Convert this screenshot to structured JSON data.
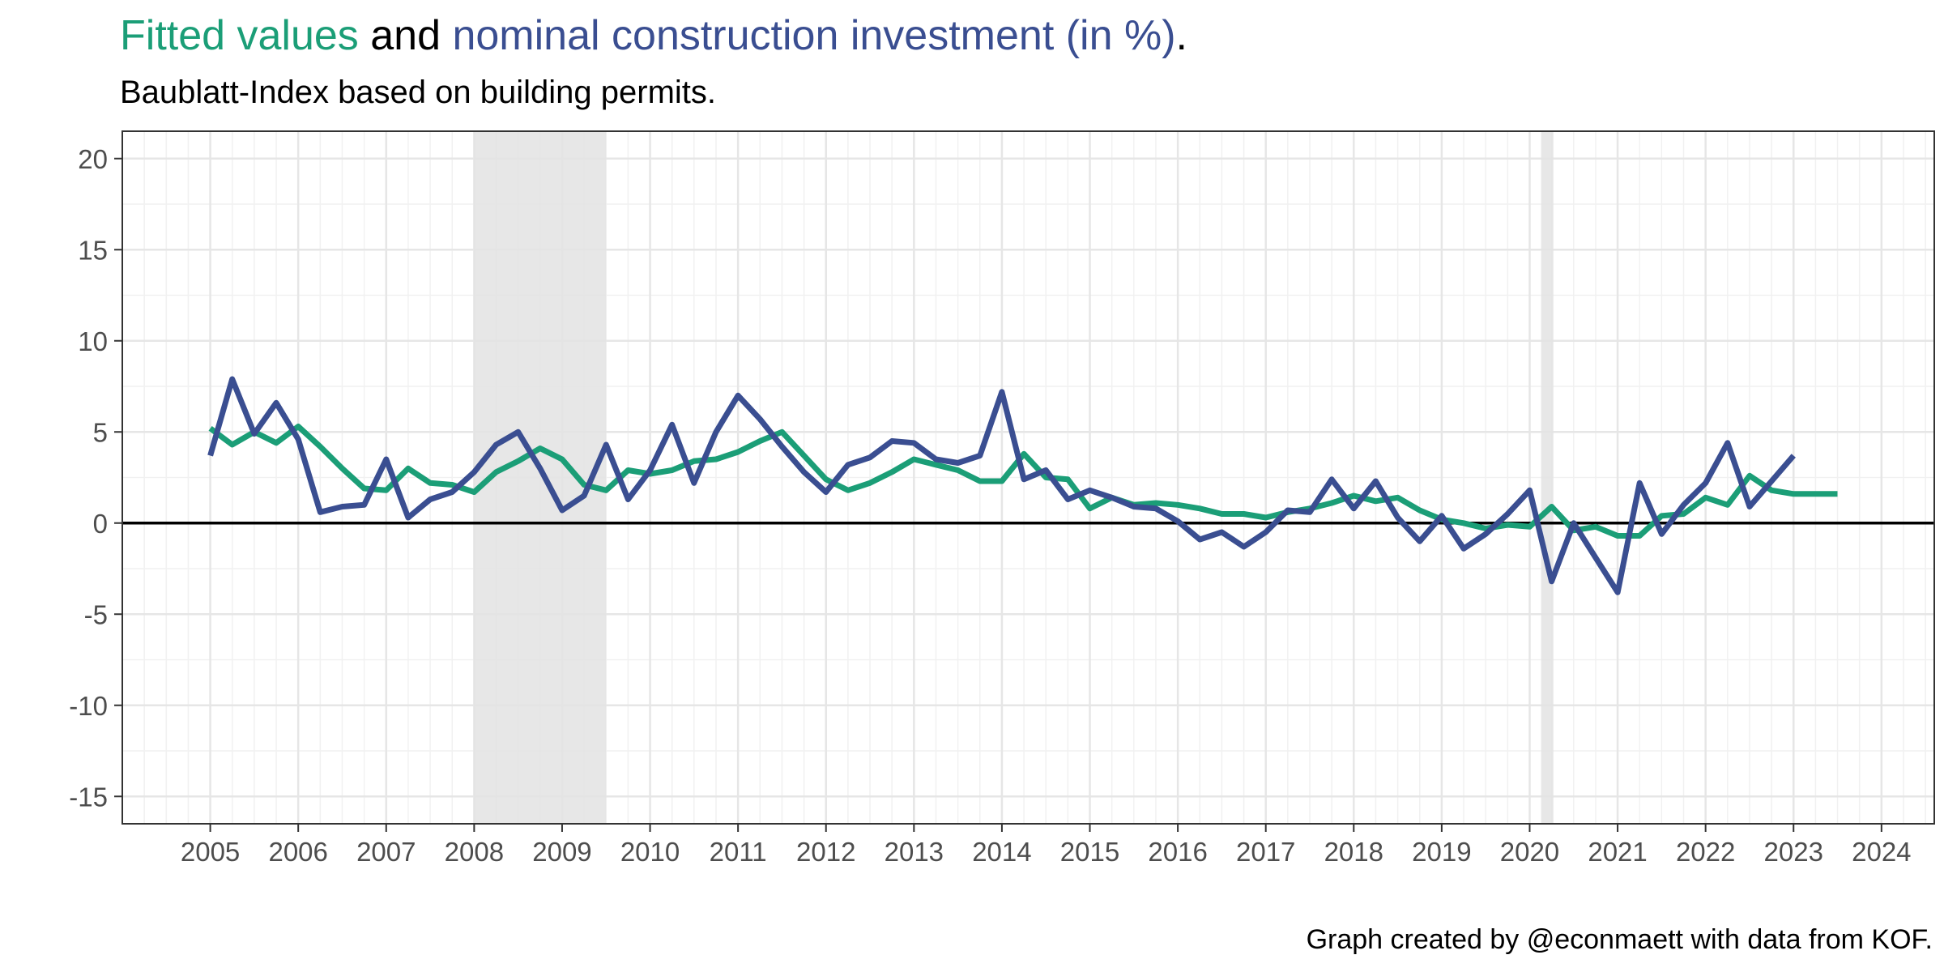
{
  "title": {
    "part1": "Fitted values",
    "part2": " and ",
    "part3": "nominal construction investment (in %)",
    "part4": "."
  },
  "subtitle": "Baublatt-Index based on building permits.",
  "caption": "Graph created by @econmaett with data from KOF.",
  "colors": {
    "fitted": "#1b9e77",
    "actual": "#3a4e91",
    "recession_shade": "#e3e3e3",
    "grid_major": "#e6e6e6",
    "grid_minor": "#f1f1f1",
    "zero_line": "#000000",
    "text": "#4d4d4d"
  },
  "chart_data": {
    "type": "line",
    "title": "Fitted values and nominal construction investment (in %).",
    "subtitle": "Baublatt-Index based on building permits.",
    "xlabel": "",
    "ylabel": "",
    "xlim": [
      2004.0,
      2024.6
    ],
    "ylim": [
      -16.5,
      21.5
    ],
    "x_ticks": [
      2005,
      2006,
      2007,
      2008,
      2009,
      2010,
      2011,
      2012,
      2013,
      2014,
      2015,
      2016,
      2017,
      2018,
      2019,
      2020,
      2021,
      2022,
      2023,
      2024
    ],
    "y_ticks": [
      -15,
      -10,
      -5,
      0,
      5,
      10,
      15,
      20
    ],
    "y_tick_labels": [
      "-15",
      "-10",
      "-5",
      "0",
      "5",
      "10",
      "15",
      "20"
    ],
    "grid": true,
    "horizontal_reference_line": 0,
    "shaded_periods": [
      {
        "start": 2008.0,
        "end": 2009.5
      },
      {
        "start": 2020.13,
        "end": 2020.27
      }
    ],
    "series": [
      {
        "id": "fitted",
        "name": "Fitted values",
        "color": "#1b9e77",
        "x": [
          2005.0,
          2005.25,
          2005.5,
          2005.75,
          2006.0,
          2006.25,
          2006.5,
          2006.75,
          2007.0,
          2007.25,
          2007.5,
          2007.75,
          2008.0,
          2008.25,
          2008.5,
          2008.75,
          2009.0,
          2009.25,
          2009.5,
          2009.75,
          2010.0,
          2010.25,
          2010.5,
          2010.75,
          2011.0,
          2011.25,
          2011.5,
          2011.75,
          2012.0,
          2012.25,
          2012.5,
          2012.75,
          2013.0,
          2013.25,
          2013.5,
          2013.75,
          2014.0,
          2014.25,
          2014.5,
          2014.75,
          2015.0,
          2015.25,
          2015.5,
          2015.75,
          2016.0,
          2016.25,
          2016.5,
          2016.75,
          2017.0,
          2017.25,
          2017.5,
          2017.75,
          2018.0,
          2018.25,
          2018.5,
          2018.75,
          2019.0,
          2019.25,
          2019.5,
          2019.75,
          2020.0,
          2020.25,
          2020.5,
          2020.75,
          2021.0,
          2021.25,
          2021.5,
          2021.75,
          2022.0,
          2022.25,
          2022.5,
          2022.75,
          2023.0,
          2023.25,
          2023.5
        ],
        "y": [
          5.2,
          4.3,
          5.0,
          4.4,
          5.3,
          4.2,
          3.0,
          1.9,
          1.8,
          3.0,
          2.2,
          2.1,
          1.7,
          2.8,
          3.4,
          4.1,
          3.5,
          2.1,
          1.8,
          2.9,
          2.7,
          2.9,
          3.4,
          3.5,
          3.9,
          4.5,
          5.0,
          3.7,
          2.4,
          1.8,
          2.2,
          2.8,
          3.5,
          3.2,
          2.9,
          2.3,
          2.3,
          3.8,
          2.5,
          2.4,
          0.8,
          1.4,
          1.0,
          1.1,
          1.0,
          0.8,
          0.5,
          0.5,
          0.3,
          0.6,
          0.8,
          1.1,
          1.5,
          1.2,
          1.4,
          0.7,
          0.2,
          0.0,
          -0.3,
          -0.1,
          -0.2,
          0.9,
          -0.4,
          -0.2,
          -0.7,
          -0.7,
          0.4,
          0.5,
          1.4,
          1.0,
          2.6,
          1.8,
          1.6,
          1.6,
          1.6
        ]
      },
      {
        "id": "actual",
        "name": "nominal construction investment (in %)",
        "color": "#3a4e91",
        "x": [
          2005.0,
          2005.25,
          2005.5,
          2005.75,
          2006.0,
          2006.25,
          2006.5,
          2006.75,
          2007.0,
          2007.25,
          2007.5,
          2007.75,
          2008.0,
          2008.25,
          2008.5,
          2008.75,
          2009.0,
          2009.25,
          2009.5,
          2009.75,
          2010.0,
          2010.25,
          2010.5,
          2010.75,
          2011.0,
          2011.25,
          2011.5,
          2011.75,
          2012.0,
          2012.25,
          2012.5,
          2012.75,
          2013.0,
          2013.25,
          2013.5,
          2013.75,
          2014.0,
          2014.25,
          2014.5,
          2014.75,
          2015.0,
          2015.25,
          2015.5,
          2015.75,
          2016.0,
          2016.25,
          2016.5,
          2016.75,
          2017.0,
          2017.25,
          2017.5,
          2017.75,
          2018.0,
          2018.25,
          2018.5,
          2018.75,
          2019.0,
          2019.25,
          2019.5,
          2019.75,
          2020.0,
          2020.25,
          2020.5,
          2020.75,
          2021.0,
          2021.25,
          2021.5,
          2021.75,
          2022.0,
          2022.25,
          2022.5,
          2022.75,
          2023.0
        ],
        "y": [
          3.7,
          7.9,
          4.9,
          6.6,
          4.6,
          0.6,
          0.9,
          1.0,
          3.5,
          0.3,
          1.3,
          1.7,
          2.8,
          4.3,
          5.0,
          3.0,
          0.7,
          1.5,
          4.3,
          1.3,
          2.9,
          5.4,
          2.2,
          5.0,
          7.0,
          5.7,
          4.2,
          2.8,
          1.7,
          3.2,
          3.6,
          4.5,
          4.4,
          3.5,
          3.3,
          3.7,
          7.2,
          2.4,
          2.9,
          1.3,
          1.8,
          1.4,
          0.9,
          0.8,
          0.1,
          -0.9,
          -0.5,
          -1.3,
          -0.5,
          0.7,
          0.6,
          2.4,
          0.8,
          2.3,
          0.3,
          -1.0,
          0.4,
          -1.4,
          -0.6,
          0.5,
          1.8,
          -3.2,
          0.0,
          -1.9,
          -3.8,
          2.2,
          -0.6,
          1.0,
          2.2,
          4.4,
          0.9,
          2.3,
          3.7
        ]
      }
    ]
  }
}
